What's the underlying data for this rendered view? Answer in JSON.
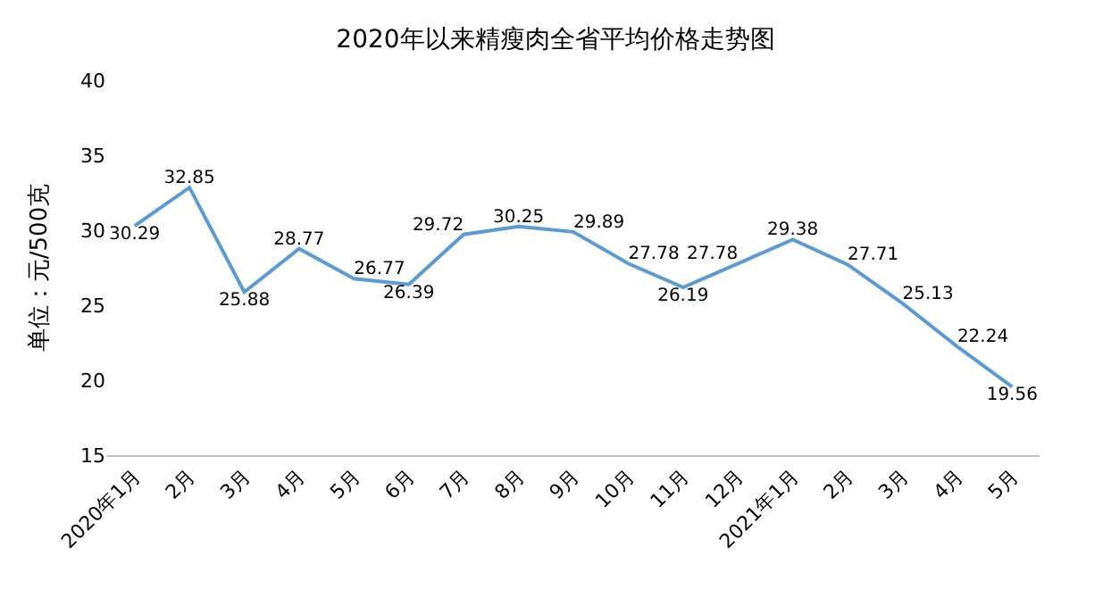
{
  "chart_data": {
    "type": "line",
    "title": "2020年以来精瘦肉全省平均价格走势图",
    "ylabel": "单位：元/500克",
    "categories": [
      "2020年1月",
      "2月",
      "3月",
      "4月",
      "5月",
      "6月",
      "7月",
      "8月",
      "9月",
      "10月",
      "11月",
      "12月",
      "2021年1月",
      "2月",
      "3月",
      "4月",
      "5月"
    ],
    "series": [
      {
        "color": "#5b9bd5",
        "values": [
          30.29,
          32.85,
          25.88,
          28.77,
          26.77,
          26.39,
          29.72,
          30.25,
          29.89,
          27.78,
          26.19,
          27.78,
          29.38,
          27.71,
          25.13,
          22.24,
          19.56
        ]
      }
    ],
    "ylim": [
      15,
      40
    ],
    "yticks": [
      15,
      20,
      25,
      30,
      35,
      40
    ],
    "legend": false,
    "marker": "none",
    "line_style": "solid",
    "data_labels": true
  }
}
